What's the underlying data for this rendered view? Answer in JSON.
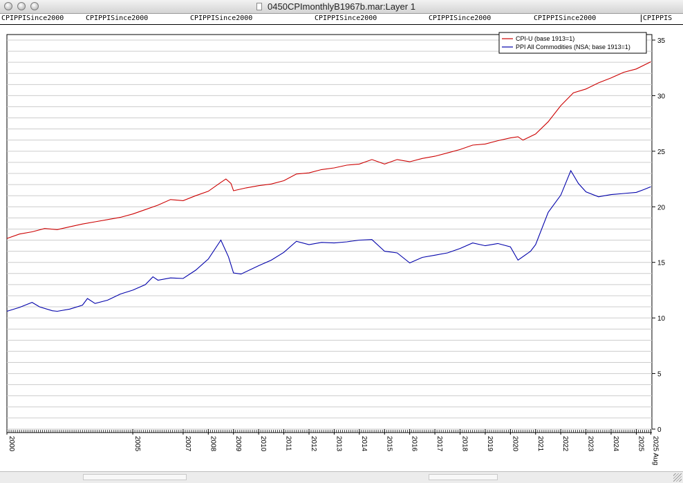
{
  "window": {
    "title": "0450CPImonthlyB1967b.mar:Layer 1"
  },
  "tabs": [
    "CPIPPISince2000",
    "CPIPPISince2000",
    "CPIPPISince2000",
    "CPIPPISince2000",
    "CPIPPISince2000",
    "CPIPPISince2000",
    "CPIPPIS"
  ],
  "colors": {
    "cpi": "#cc0000",
    "ppi": "#0000aa",
    "grid": "#cccccc"
  },
  "chart_data": {
    "type": "line",
    "title": "",
    "xlabel": "",
    "ylabel": "",
    "ylim": [
      0,
      35
    ],
    "xlim": [
      2000.0,
      2025.62
    ],
    "yticks": [
      0,
      5,
      10,
      15,
      20,
      25,
      30,
      35
    ],
    "ytick_labels": [
      "0",
      "5",
      "10",
      "15",
      "20",
      "25",
      "30",
      "35"
    ],
    "xticks": [
      {
        "x": 2000.0,
        "label": "2000"
      },
      {
        "x": 2005.0,
        "label": "2005"
      },
      {
        "x": 2007.0,
        "label": "2007"
      },
      {
        "x": 2008.0,
        "label": "2008"
      },
      {
        "x": 2009.0,
        "label": "2009"
      },
      {
        "x": 2010.0,
        "label": "2010"
      },
      {
        "x": 2011.0,
        "label": "2011"
      },
      {
        "x": 2012.0,
        "label": "2012"
      },
      {
        "x": 2013.0,
        "label": "2013"
      },
      {
        "x": 2014.0,
        "label": "2014"
      },
      {
        "x": 2015.0,
        "label": "2015"
      },
      {
        "x": 2016.0,
        "label": "2016"
      },
      {
        "x": 2017.0,
        "label": "2017"
      },
      {
        "x": 2018.0,
        "label": "2018"
      },
      {
        "x": 2019.0,
        "label": "2019"
      },
      {
        "x": 2020.0,
        "label": "2020"
      },
      {
        "x": 2021.0,
        "label": "2021"
      },
      {
        "x": 2022.0,
        "label": "2022"
      },
      {
        "x": 2023.0,
        "label": "2023"
      },
      {
        "x": 2024.0,
        "label": "2024"
      },
      {
        "x": 2025.0,
        "label": "2025"
      },
      {
        "x": 2025.58,
        "label": "2025 Aug"
      }
    ],
    "grid": true,
    "legend_position": "top-right",
    "series": [
      {
        "name": "CPI-U (base 1913=1)",
        "color": "#cc0000",
        "points": [
          [
            2000.0,
            17.15
          ],
          [
            2000.5,
            17.55
          ],
          [
            2001.0,
            17.75
          ],
          [
            2001.5,
            18.05
          ],
          [
            2002.0,
            17.95
          ],
          [
            2002.5,
            18.2
          ],
          [
            2003.0,
            18.45
          ],
          [
            2003.5,
            18.65
          ],
          [
            2004.0,
            18.85
          ],
          [
            2004.5,
            19.05
          ],
          [
            2005.0,
            19.35
          ],
          [
            2005.5,
            19.75
          ],
          [
            2006.0,
            20.15
          ],
          [
            2006.5,
            20.65
          ],
          [
            2007.0,
            20.55
          ],
          [
            2007.5,
            21.0
          ],
          [
            2008.0,
            21.4
          ],
          [
            2008.5,
            22.2
          ],
          [
            2008.7,
            22.5
          ],
          [
            2008.9,
            22.1
          ],
          [
            2009.0,
            21.45
          ],
          [
            2009.5,
            21.7
          ],
          [
            2010.0,
            21.9
          ],
          [
            2010.5,
            22.05
          ],
          [
            2011.0,
            22.35
          ],
          [
            2011.5,
            22.95
          ],
          [
            2012.0,
            23.05
          ],
          [
            2012.5,
            23.35
          ],
          [
            2013.0,
            23.5
          ],
          [
            2013.5,
            23.75
          ],
          [
            2014.0,
            23.85
          ],
          [
            2014.5,
            24.25
          ],
          [
            2015.0,
            23.85
          ],
          [
            2015.5,
            24.25
          ],
          [
            2016.0,
            24.05
          ],
          [
            2016.5,
            24.35
          ],
          [
            2017.0,
            24.55
          ],
          [
            2017.5,
            24.85
          ],
          [
            2018.0,
            25.15
          ],
          [
            2018.5,
            25.55
          ],
          [
            2019.0,
            25.65
          ],
          [
            2019.5,
            25.95
          ],
          [
            2020.0,
            26.2
          ],
          [
            2020.3,
            26.3
          ],
          [
            2020.5,
            26.0
          ],
          [
            2021.0,
            26.55
          ],
          [
            2021.5,
            27.65
          ],
          [
            2022.0,
            29.1
          ],
          [
            2022.5,
            30.25
          ],
          [
            2023.0,
            30.6
          ],
          [
            2023.5,
            31.15
          ],
          [
            2024.0,
            31.6
          ],
          [
            2024.5,
            32.1
          ],
          [
            2025.0,
            32.4
          ],
          [
            2025.58,
            33.05
          ]
        ]
      },
      {
        "name": "PPI All Commodities (NSA; base 1913=1)",
        "color": "#0000aa",
        "points": [
          [
            2000.0,
            10.6
          ],
          [
            2000.5,
            10.95
          ],
          [
            2001.0,
            11.4
          ],
          [
            2001.3,
            11.0
          ],
          [
            2001.8,
            10.65
          ],
          [
            2002.0,
            10.6
          ],
          [
            2002.5,
            10.8
          ],
          [
            2003.0,
            11.15
          ],
          [
            2003.2,
            11.75
          ],
          [
            2003.5,
            11.3
          ],
          [
            2004.0,
            11.6
          ],
          [
            2004.5,
            12.15
          ],
          [
            2005.0,
            12.5
          ],
          [
            2005.5,
            13.0
          ],
          [
            2005.8,
            13.7
          ],
          [
            2006.0,
            13.4
          ],
          [
            2006.5,
            13.6
          ],
          [
            2007.0,
            13.55
          ],
          [
            2007.5,
            14.3
          ],
          [
            2008.0,
            15.3
          ],
          [
            2008.5,
            17.0
          ],
          [
            2008.8,
            15.5
          ],
          [
            2009.0,
            14.05
          ],
          [
            2009.3,
            13.95
          ],
          [
            2010.0,
            14.7
          ],
          [
            2010.5,
            15.2
          ],
          [
            2011.0,
            15.9
          ],
          [
            2011.5,
            16.9
          ],
          [
            2012.0,
            16.6
          ],
          [
            2012.5,
            16.8
          ],
          [
            2013.0,
            16.75
          ],
          [
            2013.5,
            16.85
          ],
          [
            2014.0,
            17.0
          ],
          [
            2014.5,
            17.05
          ],
          [
            2015.0,
            16.0
          ],
          [
            2015.5,
            15.85
          ],
          [
            2016.0,
            14.95
          ],
          [
            2016.5,
            15.45
          ],
          [
            2017.0,
            15.65
          ],
          [
            2017.5,
            15.85
          ],
          [
            2018.0,
            16.25
          ],
          [
            2018.5,
            16.75
          ],
          [
            2019.0,
            16.5
          ],
          [
            2019.5,
            16.7
          ],
          [
            2020.0,
            16.4
          ],
          [
            2020.3,
            15.2
          ],
          [
            2020.8,
            16.0
          ],
          [
            2021.0,
            16.6
          ],
          [
            2021.5,
            19.5
          ],
          [
            2022.0,
            21.05
          ],
          [
            2022.4,
            23.25
          ],
          [
            2022.7,
            22.1
          ],
          [
            2023.0,
            21.35
          ],
          [
            2023.5,
            20.9
          ],
          [
            2024.0,
            21.1
          ],
          [
            2024.5,
            21.2
          ],
          [
            2025.0,
            21.3
          ],
          [
            2025.3,
            21.55
          ],
          [
            2025.58,
            21.8
          ]
        ]
      }
    ]
  }
}
